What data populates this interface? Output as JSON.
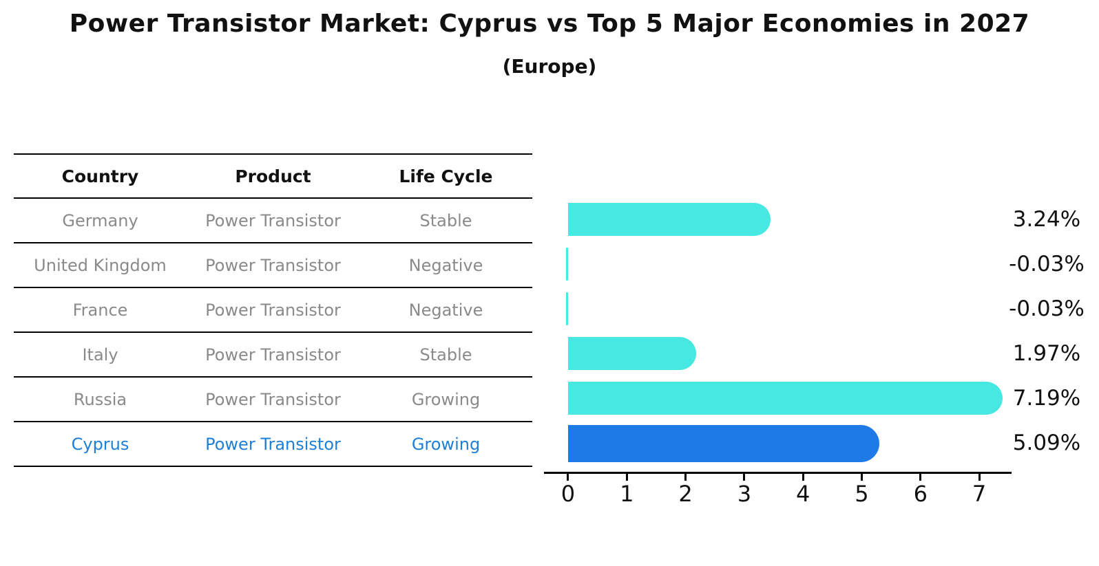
{
  "title": "Power Transistor Market: Cyprus vs Top 5 Major Economies in 2027",
  "subtitle": "(Europe)",
  "table": {
    "headers": [
      "Country",
      "Product",
      "Life Cycle"
    ],
    "rows": [
      {
        "country": "Germany",
        "product": "Power Transistor",
        "life_cycle": "Stable",
        "highlighted": false
      },
      {
        "country": "United Kingdom",
        "product": "Power Transistor",
        "life_cycle": "Negative",
        "highlighted": false
      },
      {
        "country": "France",
        "product": "Power Transistor",
        "life_cycle": "Negative",
        "highlighted": false
      },
      {
        "country": "Italy",
        "product": "Power Transistor",
        "life_cycle": "Stable",
        "highlighted": false
      },
      {
        "country": "Russia",
        "product": "Power Transistor",
        "life_cycle": "Growing",
        "highlighted": false
      },
      {
        "country": "Cyprus",
        "product": "Power Transistor",
        "life_cycle": "Growing",
        "highlighted": true
      }
    ]
  },
  "chart_data": {
    "type": "bar",
    "orientation": "horizontal",
    "title": "Power Transistor Market: Cyprus vs Top 5 Major Economies in 2027",
    "subtitle": "(Europe)",
    "categories": [
      "Germany",
      "United Kingdom",
      "France",
      "Italy",
      "Russia",
      "Cyprus"
    ],
    "values": [
      3.24,
      -0.03,
      -0.03,
      1.97,
      7.19,
      5.09
    ],
    "value_labels": [
      "3.24%",
      "-0.03%",
      "-0.03%",
      "1.97%",
      "7.19%",
      "5.09%"
    ],
    "xlabel": "",
    "ylabel": "",
    "xlim": [
      -0.41,
      7.55
    ],
    "xticks": [
      0,
      1,
      2,
      3,
      4,
      5,
      6,
      7
    ],
    "grid": false,
    "legend": false,
    "highlight_index": 5,
    "bar_color": "#46E8E1",
    "highlight_bar_color": "#1E7AE6"
  },
  "colors": {
    "background": "#ffffff",
    "table_line": "#000000",
    "header_text": "#111111",
    "cell_text": "#8a8a8a",
    "highlight_text": "#1E7FD6",
    "axis": "#000000",
    "value_label_text": "#111111"
  }
}
